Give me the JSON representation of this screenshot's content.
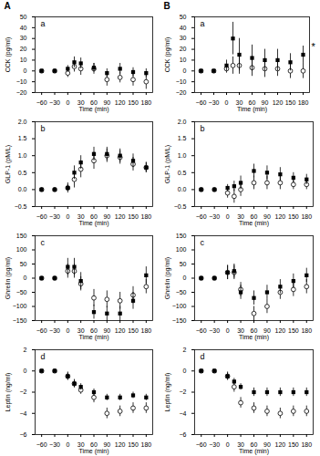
{
  "chart_data": [
    {
      "type": "scatter",
      "title": "A",
      "xlabel": "Time (min)",
      "ylabel": "CCK (pg/ml)",
      "x": [
        -60,
        -30,
        0,
        15,
        30,
        60,
        90,
        120,
        150,
        180
      ],
      "xlim": [
        -75,
        195
      ],
      "xticks": [
        -60,
        -30,
        0,
        30,
        60,
        90,
        120,
        150,
        180
      ],
      "ylim": [
        -20,
        50
      ],
      "yticks": [
        -20,
        -10,
        0,
        10,
        20,
        30,
        40,
        50
      ],
      "grid": false,
      "annotations": [
        "a"
      ],
      "series": [
        {
          "marker": "square",
          "color": "black",
          "values": [
            0,
            0,
            2,
            8,
            7,
            3,
            -2,
            2,
            -1,
            -2
          ],
          "errors": [
            1,
            1,
            3,
            5,
            5,
            4,
            4,
            5,
            4,
            4
          ]
        },
        {
          "marker": "open_circle",
          "color": "black",
          "values": [
            0,
            0,
            -2,
            4,
            2,
            2,
            -8,
            -6,
            -8,
            -10
          ],
          "errors": [
            1,
            1,
            4,
            5,
            6,
            5,
            6,
            5,
            6,
            7
          ]
        }
      ]
    },
    {
      "type": "scatter",
      "title": "B",
      "xlabel": "Time (min)",
      "ylabel": "CCK (pg/ml)",
      "x": [
        -60,
        -30,
        0,
        15,
        30,
        60,
        90,
        120,
        150,
        180
      ],
      "xlim": [
        -75,
        195
      ],
      "xticks": [
        -60,
        -30,
        0,
        30,
        60,
        90,
        120,
        150,
        180
      ],
      "ylim": [
        -20,
        50
      ],
      "yticks": [
        -20,
        -10,
        0,
        10,
        20,
        30,
        40,
        50
      ],
      "grid": false,
      "annotations": [
        "a",
        "*"
      ],
      "series": [
        {
          "marker": "square",
          "color": "black",
          "values": [
            0,
            0,
            5,
            30,
            15,
            12,
            10,
            10,
            8,
            15
          ],
          "errors": [
            1,
            1,
            5,
            15,
            15,
            12,
            10,
            10,
            8,
            8
          ]
        },
        {
          "marker": "open_circle",
          "color": "black",
          "values": [
            0,
            0,
            2,
            5,
            5,
            3,
            2,
            2,
            0,
            0
          ],
          "errors": [
            1,
            1,
            4,
            8,
            8,
            8,
            8,
            7,
            7,
            7
          ]
        }
      ]
    },
    {
      "type": "scatter",
      "xlabel": "Time (min)",
      "ylabel": "GLP-1 (pM/L)",
      "x": [
        -60,
        -30,
        0,
        15,
        30,
        60,
        90,
        120,
        150,
        180
      ],
      "xlim": [
        -75,
        195
      ],
      "xticks": [
        -60,
        -30,
        0,
        30,
        60,
        90,
        120,
        150,
        180
      ],
      "ylim": [
        -0.5,
        2.0
      ],
      "yticks": [
        -0.5,
        {
          "value": 0,
          "label": "0.0"
        },
        0.5,
        {
          "value": 1.0,
          "label": "1.0"
        },
        1.5,
        {
          "value": 2.0,
          "label": "2.0"
        }
      ],
      "grid": false,
      "annotations": [
        "b"
      ],
      "series": [
        {
          "marker": "square",
          "color": "black",
          "values": [
            0,
            0,
            0.05,
            0.5,
            0.8,
            1.05,
            1.05,
            1.0,
            0.85,
            0.65
          ],
          "errors": [
            0.05,
            0.05,
            0.1,
            0.2,
            0.2,
            0.2,
            0.2,
            0.2,
            0.2,
            0.15
          ]
        },
        {
          "marker": "open_circle",
          "color": "black",
          "values": [
            0,
            0,
            0.05,
            0.3,
            0.6,
            0.85,
            1.0,
            0.95,
            0.75,
            0.65
          ],
          "errors": [
            0.05,
            0.05,
            0.15,
            0.25,
            0.25,
            0.25,
            0.2,
            0.2,
            0.2,
            0.15
          ]
        }
      ]
    },
    {
      "type": "scatter",
      "xlabel": "Time (min)",
      "ylabel": "GLP-1 (pM/L)",
      "x": [
        -60,
        -30,
        0,
        15,
        30,
        60,
        90,
        120,
        150,
        180
      ],
      "xlim": [
        -75,
        195
      ],
      "xticks": [
        -60,
        -30,
        0,
        30,
        60,
        90,
        120,
        150,
        180
      ],
      "ylim": [
        -0.5,
        2.0
      ],
      "yticks": [
        -0.5,
        {
          "value": 0,
          "label": "0.0"
        },
        0.5,
        {
          "value": 1.0,
          "label": "1.0"
        },
        1.5,
        {
          "value": 2.0,
          "label": "2.0"
        }
      ],
      "grid": false,
      "annotations": [
        "b"
      ],
      "series": [
        {
          "marker": "square",
          "color": "black",
          "values": [
            0,
            0,
            0.05,
            0.1,
            0.2,
            0.55,
            0.5,
            0.45,
            0.35,
            0.3
          ],
          "errors": [
            0.05,
            0.05,
            0.1,
            0.15,
            0.2,
            0.2,
            0.2,
            0.2,
            0.15,
            0.15
          ]
        },
        {
          "marker": "open_circle",
          "color": "black",
          "values": [
            0,
            0,
            -0.1,
            -0.2,
            0.0,
            0.2,
            0.2,
            0.2,
            0.15,
            0.15
          ],
          "errors": [
            0.05,
            0.05,
            0.15,
            0.2,
            0.2,
            0.2,
            0.2,
            0.2,
            0.15,
            0.15
          ]
        }
      ]
    },
    {
      "type": "scatter",
      "xlabel": "Time (min)",
      "ylabel": "Ghrelin (pg/ml)",
      "x": [
        -60,
        -30,
        0,
        15,
        30,
        60,
        90,
        120,
        150,
        180
      ],
      "xlim": [
        -75,
        195
      ],
      "xticks": [
        -60,
        -30,
        0,
        30,
        60,
        90,
        120,
        150,
        180
      ],
      "ylim": [
        -150,
        150
      ],
      "yticks": [
        -150,
        -100,
        -50,
        0,
        50,
        100,
        150
      ],
      "grid": false,
      "annotations": [
        "c"
      ],
      "series": [
        {
          "marker": "square",
          "color": "black",
          "values": [
            0,
            0,
            40,
            40,
            -10,
            -120,
            -125,
            -125,
            -80,
            10
          ],
          "errors": [
            5,
            5,
            30,
            30,
            30,
            25,
            25,
            25,
            30,
            30
          ]
        },
        {
          "marker": "open_circle",
          "color": "black",
          "values": [
            0,
            0,
            25,
            25,
            -20,
            -70,
            -75,
            -80,
            -60,
            -30
          ],
          "errors": [
            5,
            5,
            25,
            25,
            25,
            30,
            30,
            30,
            30,
            25
          ]
        }
      ]
    },
    {
      "type": "scatter",
      "xlabel": "Time (min)",
      "ylabel": "Ghrelin (pg/ml)",
      "x": [
        -60,
        -30,
        0,
        15,
        30,
        60,
        90,
        120,
        150,
        180
      ],
      "xlim": [
        -75,
        195
      ],
      "xticks": [
        -60,
        -30,
        0,
        30,
        60,
        90,
        120,
        150,
        180
      ],
      "ylim": [
        -150,
        150
      ],
      "yticks": [
        -150,
        -100,
        -50,
        0,
        50,
        100,
        150
      ],
      "grid": false,
      "annotations": [
        "c"
      ],
      "series": [
        {
          "marker": "square",
          "color": "black",
          "values": [
            0,
            0,
            20,
            25,
            -50,
            -70,
            -50,
            -30,
            -10,
            10
          ],
          "errors": [
            5,
            5,
            25,
            25,
            25,
            25,
            25,
            25,
            25,
            25
          ]
        },
        {
          "marker": "open_circle",
          "color": "black",
          "values": [
            0,
            0,
            20,
            20,
            -40,
            -125,
            -100,
            -50,
            -40,
            -30
          ],
          "errors": [
            5,
            5,
            25,
            25,
            25,
            25,
            25,
            25,
            25,
            25
          ]
        }
      ]
    },
    {
      "type": "scatter",
      "xlabel": "Time (min)",
      "ylabel": "Leptin (ng/ml)",
      "x": [
        -60,
        -30,
        0,
        15,
        30,
        60,
        90,
        120,
        150,
        180
      ],
      "xlim": [
        -75,
        195
      ],
      "xticks": [
        -60,
        -30,
        0,
        30,
        60,
        90,
        120,
        150,
        180
      ],
      "ylim": [
        -6,
        2
      ],
      "yticks": [
        -6,
        -4,
        -2,
        0,
        2
      ],
      "grid": false,
      "annotations": [
        "d"
      ],
      "series": [
        {
          "marker": "square",
          "color": "black",
          "values": [
            0,
            0,
            -0.5,
            -1.2,
            -1.5,
            -2.0,
            -2.5,
            -2.5,
            -2.3,
            -2.5
          ],
          "errors": [
            0.1,
            0.1,
            0.3,
            0.3,
            0.3,
            0.3,
            0.3,
            0.3,
            0.3,
            0.3
          ]
        },
        {
          "marker": "open_circle",
          "color": "black",
          "values": [
            0,
            0,
            -0.5,
            -1.2,
            -1.8,
            -2.5,
            -4.0,
            -3.8,
            -3.5,
            -3.5
          ],
          "errors": [
            0.1,
            0.1,
            0.4,
            0.4,
            0.4,
            0.5,
            0.5,
            0.5,
            0.5,
            0.5
          ]
        }
      ]
    },
    {
      "type": "scatter",
      "xlabel": "Time (min)",
      "ylabel": "Leptin (ng/ml)",
      "x": [
        -60,
        -30,
        0,
        15,
        30,
        60,
        90,
        120,
        150,
        180
      ],
      "xlim": [
        -75,
        195
      ],
      "xticks": [
        -60,
        -30,
        0,
        30,
        60,
        90,
        120,
        150,
        180
      ],
      "ylim": [
        -6,
        2
      ],
      "yticks": [
        -6,
        -4,
        -2,
        0,
        2
      ],
      "grid": false,
      "annotations": [
        "d"
      ],
      "series": [
        {
          "marker": "square",
          "color": "black",
          "values": [
            0,
            0,
            -0.5,
            -1.0,
            -1.5,
            -2.0,
            -2.0,
            -2.0,
            -2.0,
            -2.0
          ],
          "errors": [
            0.1,
            0.1,
            0.3,
            0.3,
            0.3,
            0.4,
            0.4,
            0.4,
            0.4,
            0.4
          ]
        },
        {
          "marker": "open_circle",
          "color": "black",
          "values": [
            0,
            0,
            -0.5,
            -1.5,
            -3.0,
            -3.5,
            -3.8,
            -4.0,
            -3.8,
            -3.8
          ],
          "errors": [
            0.1,
            0.1,
            0.4,
            0.5,
            0.5,
            0.5,
            0.5,
            0.5,
            0.5,
            0.5
          ]
        }
      ]
    }
  ]
}
